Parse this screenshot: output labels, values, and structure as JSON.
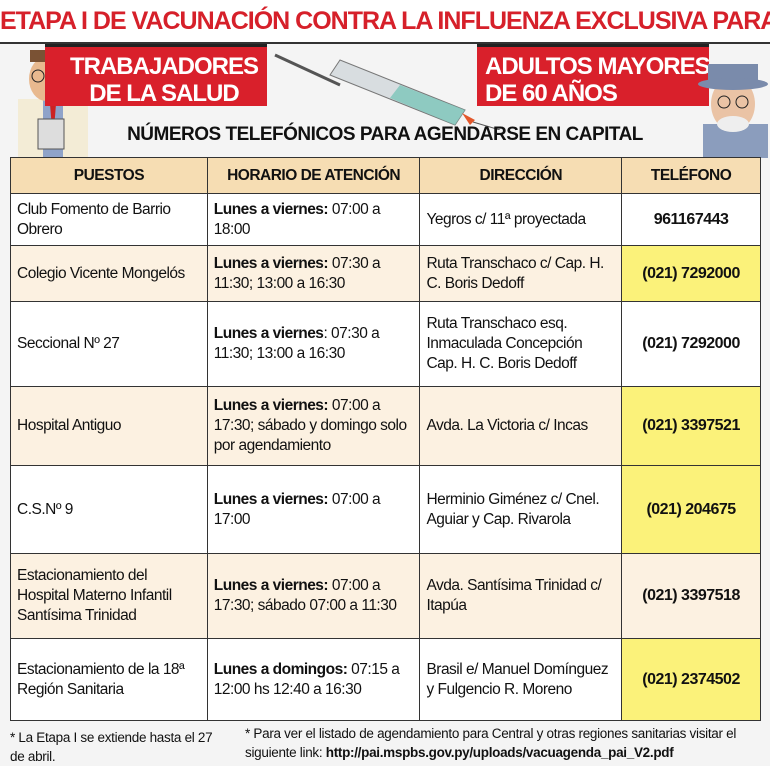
{
  "title": "ETAPA I DE VACUNACIÓN CONTRA LA INFLUENZA EXCLUSIVA PARA:",
  "groups": {
    "left": [
      "TRABAJADORES",
      "DE LA SALUD"
    ],
    "right": [
      "ADULTOS MAYORES",
      "DE 60 AÑOS"
    ]
  },
  "subtitle": "NÚMEROS TELEFÓNICOS PARA AGENDARSE EN CAPITAL",
  "table": {
    "headers": [
      "PUESTOS",
      "HORARIO DE ATENCIÓN",
      "DIRECCIÓN",
      "TELÉFONO"
    ],
    "rows": [
      {
        "puesto": "Club Fomento de Barrio Obrero",
        "horario_bold": "Lunes a viernes:",
        "horario": " 07:00 a 18:00",
        "direccion": "Yegros c/ 11ª proyectada",
        "telefono": "961167443",
        "highlight": false
      },
      {
        "puesto": "Colegio Vicente Mongelós",
        "horario_bold": "Lunes a viernes:",
        "horario": " 07:30 a 11:30; 13:00 a 16:30",
        "direccion": "Ruta Transchaco c/ Cap. H. C. Boris Dedoff",
        "telefono": "(021) 7292000",
        "highlight": true
      },
      {
        "puesto": "Seccional Nº 27",
        "horario_bold": "Lunes a viernes",
        "horario": ": 07:30 a 11:30; 13:00 a 16:30",
        "direccion": "Ruta Transchaco esq. Inmaculada Concepción Cap. H. C. Boris Dedoff",
        "telefono": "(021) 7292000",
        "highlight": false
      },
      {
        "puesto": "Hospital Antiguo",
        "horario_bold": "Lunes a viernes:",
        "horario": " 07:00 a 17:30; sábado y domingo solo por agendamiento",
        "direccion": "Avda. La Victoria c/ Incas",
        "telefono": "(021) 3397521",
        "highlight": true
      },
      {
        "puesto": "C.S.Nº 9",
        "horario_bold": "Lunes a viernes:",
        "horario": " 07:00 a 17:00",
        "direccion": "Herminio Giménez c/ Cnel. Aguiar y Cap. Rivarola",
        "telefono": "(021) 204675",
        "highlight": true
      },
      {
        "puesto": "Estacionamiento del Hospital Materno Infantil Santísima Trinidad",
        "horario_bold": "Lunes a viernes:",
        "horario": " 07:00 a 17:30; sábado 07:00 a 11:30",
        "direccion": "Avda. Santísima Trinidad c/ Itapúa",
        "telefono": "(021) 3397518",
        "highlight": false
      },
      {
        "puesto": "Estacionamiento de la 18ª Región Sanitaria",
        "horario_bold": "Lunes a domingos:",
        "horario": " 07:15 a 12:00 hs 12:40 a 16:30",
        "direccion": "Brasil e/ Manuel Domínguez y Fulgencio R. Moreno",
        "telefono": "(021) 2374502",
        "highlight": true
      }
    ]
  },
  "footnotes": {
    "left": "* La Etapa I se extiende hasta el 27 de abril.",
    "right": "* Para ver el listado de agendamiento para Central y otras regiones sanitarias visitar el siguiente link: ",
    "link": "http://pai.mspbs.gov.py/uploads/vacuagenda_pai_V2.pdf"
  },
  "colors": {
    "red": "#d9202b",
    "header": "#f6ddb3",
    "highlight": "#fbf27a"
  }
}
